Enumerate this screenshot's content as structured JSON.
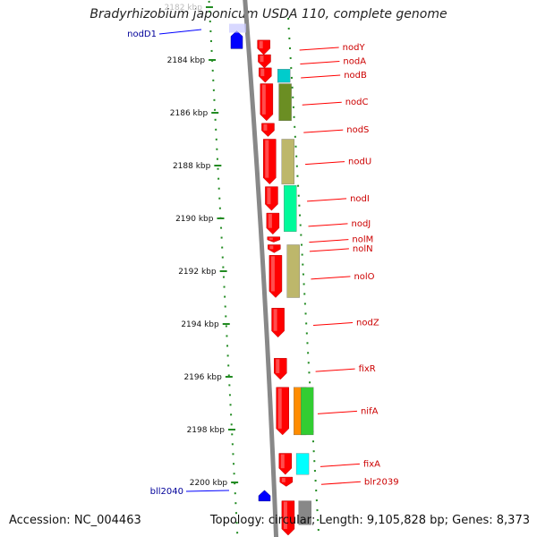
{
  "title": "Bradyrhizobium japonicum USDA 110, complete genome",
  "footer": {
    "accession": "Accession: NC_004463",
    "topology": "Topology: circular; Length: 9,105,828 bp; Genes: 8,373"
  },
  "chart_data": {
    "type": "genome_map",
    "coordinate_ticks_kbp": [
      {
        "value": 2182,
        "label": "2182 kbp"
      },
      {
        "value": 2184,
        "label": "2184 kbp"
      },
      {
        "value": 2186,
        "label": "2186 kbp"
      },
      {
        "value": 2188,
        "label": "2188 kbp"
      },
      {
        "value": 2190,
        "label": "2190 kbp"
      },
      {
        "value": 2192,
        "label": "2192 kbp"
      },
      {
        "value": 2194,
        "label": "2194 kbp"
      },
      {
        "value": 2196,
        "label": "2196 kbp"
      },
      {
        "value": 2198,
        "label": "2198 kbp"
      },
      {
        "value": 2200,
        "label": "2200 kbp"
      }
    ],
    "colors": {
      "forward_gene": "#ff0000",
      "reverse_gene": "#0000ff",
      "forward_label": "#cc0000",
      "reverse_label": "#000099",
      "backbone": "#888888",
      "tick": "#228b22"
    },
    "genes_reverse": [
      {
        "name": "nodD1",
        "start_kbp": 2182.9,
        "end_kbp": 2183.3
      },
      {
        "name": "bll2040",
        "start_kbp": 2200.3,
        "end_kbp": 2200.7
      }
    ],
    "genes_forward": [
      {
        "name": "nodY",
        "start_kbp": 2183.25,
        "end_kbp": 2183.8
      },
      {
        "name": "nodA",
        "start_kbp": 2183.8,
        "end_kbp": 2184.3
      },
      {
        "name": "nodB",
        "start_kbp": 2184.3,
        "end_kbp": 2184.85
      },
      {
        "name": "nodC",
        "start_kbp": 2184.9,
        "end_kbp": 2186.3
      },
      {
        "name": "nodS",
        "start_kbp": 2186.4,
        "end_kbp": 2186.9
      },
      {
        "name": "nodU",
        "start_kbp": 2187.0,
        "end_kbp": 2188.7
      },
      {
        "name": "nodI",
        "start_kbp": 2188.8,
        "end_kbp": 2189.7
      },
      {
        "name": "nodJ",
        "start_kbp": 2189.8,
        "end_kbp": 2190.6
      },
      {
        "name": "nolM",
        "start_kbp": 2190.7,
        "end_kbp": 2190.9
      },
      {
        "name": "nolN",
        "start_kbp": 2191.0,
        "end_kbp": 2191.3
      },
      {
        "name": "nolO",
        "start_kbp": 2191.4,
        "end_kbp": 2193.0
      },
      {
        "name": "nodZ",
        "start_kbp": 2193.4,
        "end_kbp": 2194.5
      },
      {
        "name": "fixR",
        "start_kbp": 2195.3,
        "end_kbp": 2196.1
      },
      {
        "name": "nifA",
        "start_kbp": 2196.4,
        "end_kbp": 2198.2
      },
      {
        "name": "fixA",
        "start_kbp": 2198.9,
        "end_kbp": 2199.7
      },
      {
        "name": "blr2039",
        "start_kbp": 2199.8,
        "end_kbp": 2200.15
      },
      {
        "name": "",
        "start_kbp": 2200.7,
        "end_kbp": 2202.0
      }
    ],
    "feature_blocks": [
      {
        "color": "#00cccc",
        "start_kbp": 2184.35,
        "end_kbp": 2184.85
      },
      {
        "color": "#6b8e23",
        "start_kbp": 2184.9,
        "end_kbp": 2186.3
      },
      {
        "color": "#bdb76b",
        "start_kbp": 2187.0,
        "end_kbp": 2188.7
      },
      {
        "color": "#00fa9a",
        "start_kbp": 2188.75,
        "end_kbp": 2190.5
      },
      {
        "color": "#bdb76b",
        "start_kbp": 2191.0,
        "end_kbp": 2193.0
      },
      {
        "color": "#ff8c00",
        "start_kbp": 2196.4,
        "end_kbp": 2198.2
      },
      {
        "color": "#32cd32",
        "start_kbp": 2196.4,
        "end_kbp": 2198.2
      },
      {
        "color": "#00ffff",
        "start_kbp": 2198.9,
        "end_kbp": 2199.7
      },
      {
        "color": "#888888",
        "start_kbp": 2200.7,
        "end_kbp": 2201.6
      }
    ]
  }
}
